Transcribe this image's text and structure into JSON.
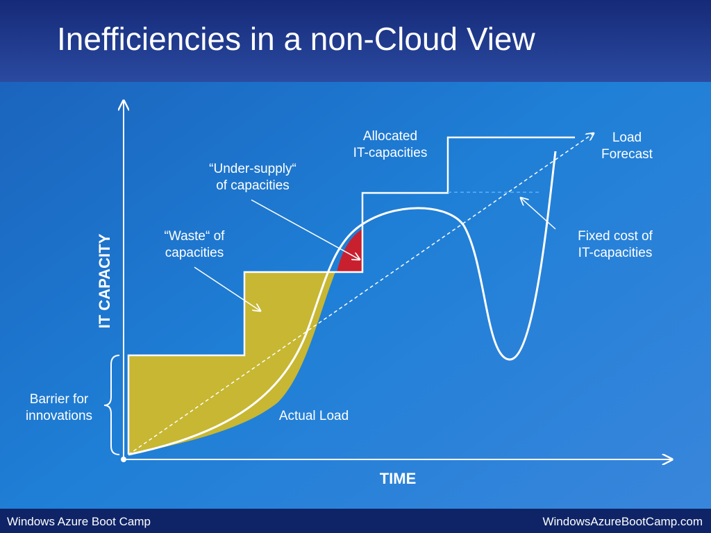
{
  "header": {
    "title": "Inefficiencies in a non-Cloud View"
  },
  "diagram": {
    "y_axis_label": "IT CAPACITY",
    "x_axis_label": "TIME",
    "annotations": {
      "allocated": [
        "Allocated",
        "IT-capacities"
      ],
      "load_forecast": [
        "Load",
        "Forecast"
      ],
      "under_supply": [
        "“Under-supply“",
        "of capacities"
      ],
      "waste": [
        "“Waste“ of",
        "capacities"
      ],
      "fixed_cost": [
        "Fixed cost of",
        "IT-capacities"
      ],
      "barrier": [
        "Barrier for",
        "innovations"
      ],
      "actual_load": "Actual Load"
    }
  },
  "footer": {
    "left": "Windows Azure Boot Camp",
    "right": "WindowsAzureBootCamp.com"
  }
}
